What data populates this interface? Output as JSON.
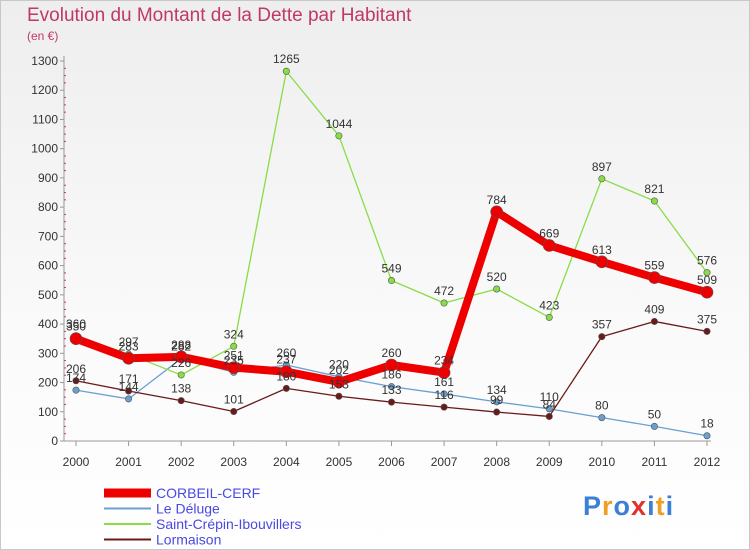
{
  "chart_data": {
    "type": "line",
    "title": "Evolution du Montant de la Dette par Habitant",
    "subtitle": "(en €)",
    "categories": [
      "2000",
      "2001",
      "2002",
      "2003",
      "2004",
      "2005",
      "2006",
      "2007",
      "2008",
      "2009",
      "2010",
      "2011",
      "2012"
    ],
    "ylim": [
      0,
      1300
    ],
    "yticks": [
      0,
      100,
      200,
      300,
      400,
      500,
      600,
      700,
      800,
      900,
      1000,
      1100,
      1200,
      1300
    ],
    "grid": false,
    "series": [
      {
        "name": "CORBEIL-CERF",
        "color": "#ee0000",
        "width": 8,
        "marker": 6,
        "values": [
          350,
          283,
          288,
          251,
          237,
          202,
          260,
          234,
          784,
          669,
          613,
          559,
          509
        ],
        "labels": [
          "350",
          "283",
          "288",
          "251",
          "237",
          "202",
          "260",
          "234",
          "784",
          "669",
          "613",
          "559",
          "509"
        ]
      },
      {
        "name": "Le Déluge",
        "color": "#6aa0d0",
        "width": 1.3,
        "marker": 3.2,
        "values": [
          174,
          144,
          282,
          235,
          260,
          220,
          186,
          161,
          134,
          110,
          80,
          50,
          18
        ],
        "labels": [
          "174",
          "144",
          "282",
          "235",
          "260",
          "220",
          "186",
          "161",
          "134",
          "110",
          "80",
          "50",
          "18"
        ]
      },
      {
        "name": "Saint-Crépin-Ibouvillers",
        "color": "#88dd44",
        "width": 1.3,
        "marker": 3.2,
        "values": [
          360,
          297,
          226,
          324,
          1265,
          1044,
          549,
          472,
          520,
          423,
          897,
          821,
          576
        ],
        "labels": [
          "360",
          "297",
          "226",
          "324",
          "1265",
          "1044",
          "549",
          "472",
          "520",
          "423",
          "897",
          "821",
          "576"
        ]
      },
      {
        "name": "Lormaison",
        "color": "#6b1a1a",
        "width": 1.3,
        "marker": 3.2,
        "values": [
          206,
          171,
          138,
          101,
          180,
          153,
          133,
          116,
          99,
          84,
          357,
          409,
          375
        ],
        "labels": [
          "206",
          "171",
          "138",
          "101",
          "180",
          "153",
          "133",
          "116",
          "99",
          "84",
          "357",
          "409",
          "375"
        ]
      }
    ]
  },
  "logo": {
    "letters": [
      "P",
      "r",
      "o",
      "x",
      "i",
      "t",
      "i"
    ],
    "colors": [
      "#3b7fd6",
      "#f0a020",
      "#3b7fd6",
      "#e03030",
      "#3b7fd6",
      "#f0a020",
      "#3b7fd6"
    ]
  }
}
